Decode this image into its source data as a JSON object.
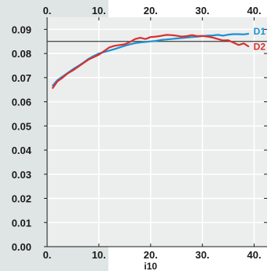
{
  "chart_data": {
    "type": "line",
    "title": "",
    "xlabel": "i10",
    "ylabel": "",
    "xlim": [
      0,
      42.5
    ],
    "ylim": [
      0,
      0.095
    ],
    "x_ticks": [
      {
        "value": 0,
        "label": "0."
      },
      {
        "value": 10,
        "label": "10."
      },
      {
        "value": 20,
        "label": "20."
      },
      {
        "value": 30,
        "label": "30."
      },
      {
        "value": 40,
        "label": "40."
      }
    ],
    "y_ticks": [
      {
        "value": 0.0,
        "label": "0.00"
      },
      {
        "value": 0.01,
        "label": "0.01"
      },
      {
        "value": 0.02,
        "label": "0.02"
      },
      {
        "value": 0.03,
        "label": "0.03"
      },
      {
        "value": 0.04,
        "label": "0.04"
      },
      {
        "value": 0.05,
        "label": "0.05"
      },
      {
        "value": 0.06,
        "label": "0.06"
      },
      {
        "value": 0.07,
        "label": "0.07"
      },
      {
        "value": 0.08,
        "label": "0.08"
      },
      {
        "value": 0.09,
        "label": "0.09"
      }
    ],
    "reference_line": {
      "y": 0.085
    },
    "grid": true,
    "series": [
      {
        "name": "D1",
        "color": "#1f8fd0",
        "x": [
          1,
          2,
          3,
          4,
          5,
          6,
          7,
          8,
          9,
          10,
          11,
          12,
          13,
          14,
          15,
          16,
          17,
          18,
          19,
          20,
          21,
          22,
          23,
          24,
          25,
          26,
          27,
          28,
          29,
          30,
          31,
          32,
          33,
          34,
          35,
          36,
          37,
          38,
          39
        ],
        "y": [
          0.0665,
          0.069,
          0.0705,
          0.072,
          0.0735,
          0.0748,
          0.0762,
          0.0778,
          0.079,
          0.08,
          0.0806,
          0.0812,
          0.0818,
          0.0825,
          0.0832,
          0.0838,
          0.0843,
          0.0846,
          0.0848,
          0.085,
          0.0852,
          0.0856,
          0.0858,
          0.086,
          0.0862,
          0.0864,
          0.0866,
          0.0868,
          0.087,
          0.0872,
          0.0874,
          0.0875,
          0.0877,
          0.0874,
          0.0878,
          0.088,
          0.088,
          0.0879,
          0.0882
        ]
      },
      {
        "name": "D2",
        "color": "#d92f2f",
        "x": [
          1,
          2,
          3,
          4,
          5,
          6,
          7,
          8,
          9,
          10,
          11,
          12,
          13,
          14,
          15,
          16,
          17,
          18,
          19,
          20,
          21,
          22,
          23,
          24,
          25,
          26,
          27,
          28,
          29,
          30,
          31,
          32,
          33,
          34,
          35,
          36,
          37,
          38,
          39
        ],
        "y": [
          0.0655,
          0.0685,
          0.07,
          0.0718,
          0.073,
          0.0745,
          0.076,
          0.0775,
          0.0785,
          0.0795,
          0.081,
          0.0825,
          0.0832,
          0.0835,
          0.0838,
          0.0848,
          0.086,
          0.0865,
          0.086,
          0.0868,
          0.087,
          0.0873,
          0.0877,
          0.0876,
          0.0874,
          0.087,
          0.0872,
          0.0876,
          0.0872,
          0.0873,
          0.087,
          0.0866,
          0.086,
          0.0854,
          0.0855,
          0.0845,
          0.0835,
          0.0842,
          0.0828
        ]
      }
    ]
  }
}
